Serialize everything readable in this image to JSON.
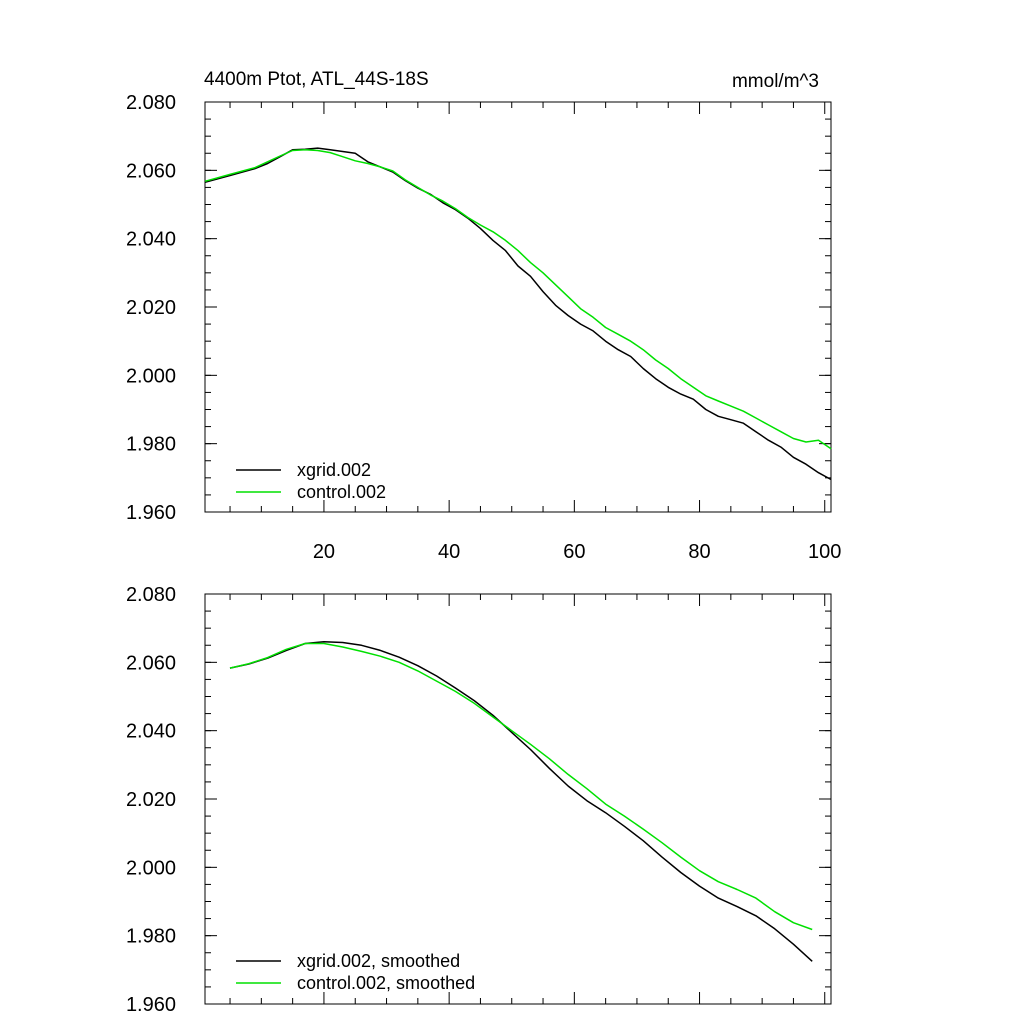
{
  "chart_data": [
    {
      "type": "line",
      "title": "4400m Ptot, ATL_44S-18S",
      "units": "mmol/m^3",
      "xlabel": "",
      "ylabel": "",
      "xlim": [
        1,
        101
      ],
      "ylim": [
        1.96,
        2.08
      ],
      "xticks": [
        20,
        40,
        60,
        80,
        100
      ],
      "xtick_labels": [
        "20",
        "40",
        "60",
        "80",
        "100"
      ],
      "yticks": [
        1.96,
        1.98,
        2.0,
        2.02,
        2.04,
        2.06,
        2.08
      ],
      "ytick_labels": [
        "1.960",
        "1.980",
        "2.000",
        "2.020",
        "2.040",
        "2.060",
        "2.080"
      ],
      "grid": false,
      "legend_position": "bottom-left",
      "series": [
        {
          "name": "xgrid.002",
          "color": "#000000",
          "x": [
            1,
            3,
            5,
            7,
            9,
            11,
            13,
            15,
            17,
            19,
            21,
            23,
            25,
            27,
            29,
            31,
            33,
            35,
            37,
            39,
            41,
            43,
            45,
            47,
            49,
            51,
            53,
            55,
            57,
            59,
            61,
            63,
            65,
            67,
            69,
            71,
            73,
            75,
            77,
            79,
            81,
            83,
            85,
            87,
            89,
            91,
            93,
            95,
            97,
            99,
            101
          ],
          "y": [
            2.0565,
            2.0575,
            2.0585,
            2.0595,
            2.0605,
            2.062,
            2.064,
            2.066,
            2.0662,
            2.0665,
            2.066,
            2.0655,
            2.065,
            2.0625,
            2.061,
            2.0595,
            2.057,
            2.0548,
            2.053,
            2.0505,
            2.0485,
            2.046,
            2.043,
            2.0395,
            2.0365,
            2.032,
            2.029,
            2.0245,
            2.0205,
            2.0175,
            2.015,
            2.013,
            2.01,
            2.0075,
            2.0055,
            2.002,
            1.999,
            1.9965,
            1.9945,
            1.993,
            1.99,
            1.988,
            1.987,
            1.986,
            1.9835,
            1.981,
            1.979,
            1.976,
            1.974,
            1.9715,
            1.9695
          ]
        },
        {
          "name": "control.002",
          "color": "#00e000",
          "x": [
            1,
            3,
            5,
            7,
            9,
            11,
            13,
            15,
            17,
            19,
            21,
            23,
            25,
            27,
            29,
            31,
            33,
            35,
            37,
            39,
            41,
            43,
            45,
            47,
            49,
            51,
            53,
            55,
            57,
            59,
            61,
            63,
            65,
            67,
            69,
            71,
            73,
            75,
            77,
            79,
            81,
            83,
            85,
            87,
            89,
            91,
            93,
            95,
            97,
            99,
            101
          ],
          "y": [
            2.0568,
            2.0578,
            2.0588,
            2.0598,
            2.0608,
            2.0625,
            2.0642,
            2.0658,
            2.066,
            2.0658,
            2.0652,
            2.064,
            2.0628,
            2.062,
            2.061,
            2.0598,
            2.0572,
            2.055,
            2.0528,
            2.051,
            2.0488,
            2.0462,
            2.044,
            2.042,
            2.0395,
            2.0365,
            2.033,
            2.03,
            2.0265,
            2.023,
            2.0195,
            2.017,
            2.014,
            2.012,
            2.01,
            2.0075,
            2.0045,
            2.002,
            1.999,
            1.9965,
            1.994,
            1.9925,
            1.991,
            1.9895,
            1.9875,
            1.9855,
            1.9835,
            1.9815,
            1.9805,
            1.981,
            1.9785
          ]
        }
      ]
    },
    {
      "type": "line",
      "title": "",
      "xlabel": "",
      "ylabel": "",
      "xlim": [
        1,
        101
      ],
      "ylim": [
        1.96,
        2.08
      ],
      "xticks": [
        20,
        40,
        60,
        80,
        100
      ],
      "xtick_labels": [],
      "yticks": [
        1.96,
        1.98,
        2.0,
        2.02,
        2.04,
        2.06,
        2.08
      ],
      "ytick_labels": [
        "1.960",
        "1.980",
        "2.000",
        "2.020",
        "2.040",
        "2.060",
        "2.080"
      ],
      "grid": false,
      "legend_position": "bottom-left",
      "series": [
        {
          "name": "xgrid.002, smoothed",
          "color": "#000000",
          "x": [
            5,
            8,
            11,
            14,
            17,
            20,
            23,
            26,
            29,
            32,
            35,
            38,
            41,
            44,
            47,
            50,
            53,
            56,
            59,
            62,
            65,
            68,
            71,
            74,
            77,
            80,
            83,
            86,
            89,
            92,
            95,
            98
          ],
          "y": [
            2.0583,
            2.0595,
            2.0612,
            2.0635,
            2.0655,
            2.066,
            2.0658,
            2.065,
            2.0635,
            2.0615,
            2.059,
            2.056,
            2.0525,
            2.0488,
            2.0445,
            2.0395,
            2.0345,
            2.029,
            2.0238,
            2.0195,
            2.016,
            2.012,
            2.0078,
            2.003,
            1.9985,
            1.9945,
            1.991,
            1.9885,
            1.9858,
            1.982,
            1.9775,
            1.9725
          ]
        },
        {
          "name": "control.002, smoothed",
          "color": "#00e000",
          "x": [
            5,
            8,
            11,
            14,
            17,
            20,
            23,
            26,
            29,
            32,
            35,
            38,
            41,
            44,
            47,
            50,
            53,
            56,
            59,
            62,
            65,
            68,
            71,
            74,
            77,
            80,
            83,
            86,
            89,
            92,
            95,
            98
          ],
          "y": [
            2.0583,
            2.0596,
            2.0614,
            2.0638,
            2.0655,
            2.0655,
            2.0645,
            2.0632,
            2.0618,
            2.06,
            2.0575,
            2.0545,
            2.0515,
            2.048,
            2.044,
            2.04,
            2.036,
            2.0318,
            2.0272,
            2.023,
            2.0185,
            2.015,
            2.0112,
            2.0072,
            2.003,
            1.999,
            1.9958,
            1.9935,
            1.991,
            1.987,
            1.9838,
            1.9818
          ]
        }
      ]
    }
  ]
}
